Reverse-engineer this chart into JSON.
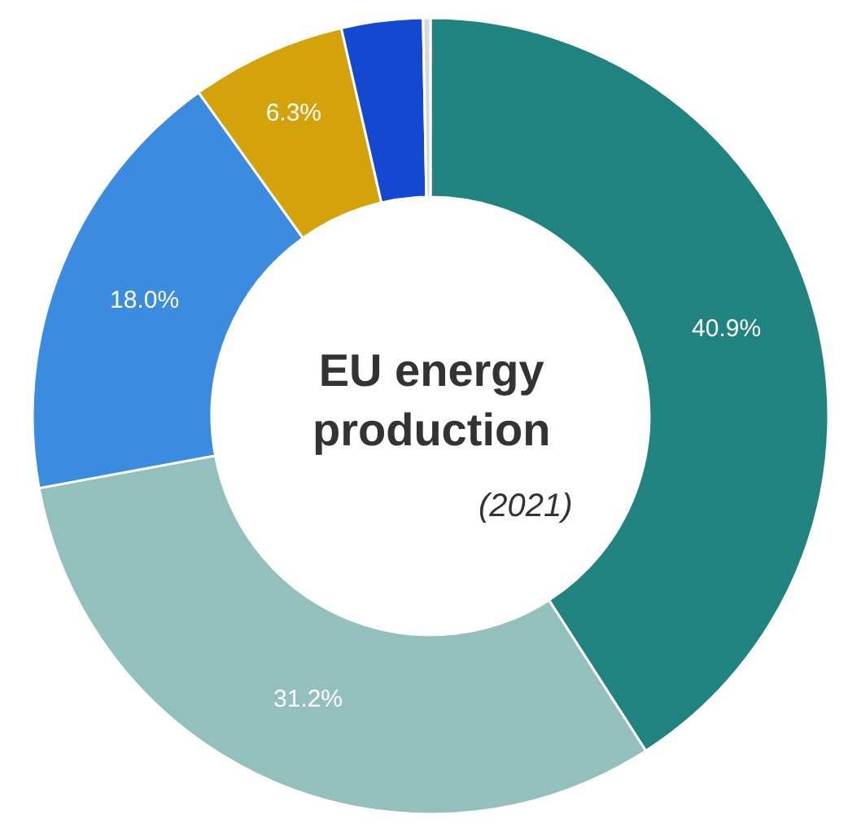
{
  "chart_data": {
    "type": "donut",
    "title": "EU energy production",
    "subtitle": "(2021)",
    "categories": [
      null,
      null,
      null,
      null,
      null,
      null
    ],
    "values": [
      40.9,
      31.2,
      18.0,
      6.3,
      3.3,
      0.3
    ],
    "value_labels": [
      "40.9%",
      "31.2%",
      "18.0%",
      "6.3%",
      null,
      null
    ],
    "colors": [
      "#218380",
      "#93c0bd",
      "#3b8be0",
      "#d4a30c",
      "#1448d0",
      "#d9d9d9"
    ],
    "legend": false
  }
}
